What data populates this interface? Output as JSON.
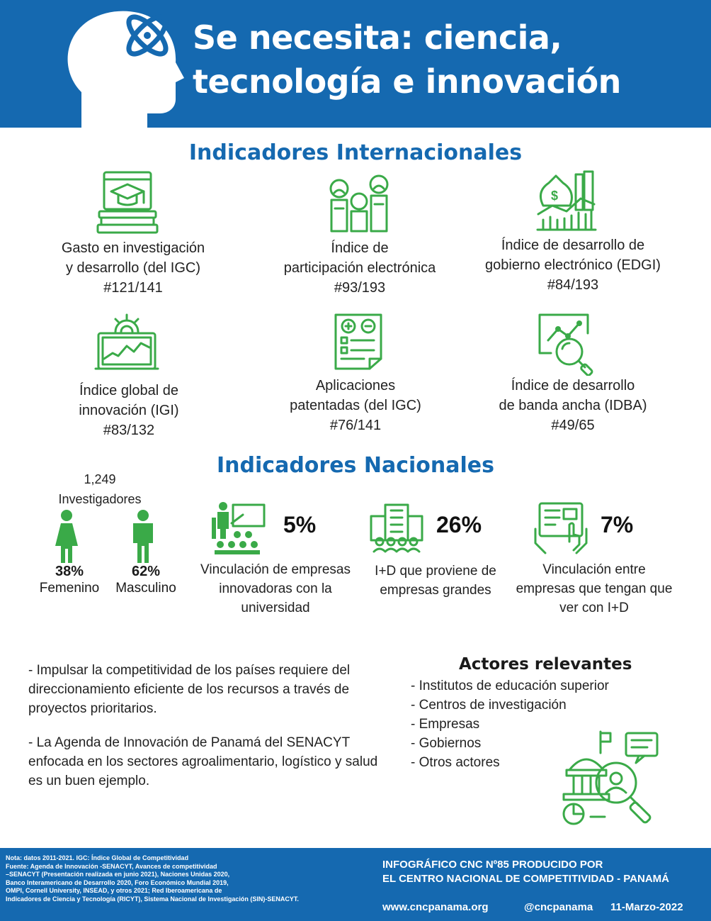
{
  "header": {
    "title_line1": "Se necesita: ciencia,",
    "title_line2": "tecnología  e innovación"
  },
  "international": {
    "title": "Indicadores Internacionales",
    "items": [
      {
        "line1": "Gasto en investigación",
        "line2": "y desarrollo (del IGC)",
        "rank": "#121/141",
        "icon": "graduation-books-icon"
      },
      {
        "line1": "Índice de",
        "line2": "participación electrónica",
        "rank": "#93/193",
        "icon": "people-podium-icon"
      },
      {
        "line1": "Índice de desarrollo de",
        "line2": "gobierno electrónico (EDGI)",
        "rank": "#84/193",
        "icon": "money-growth-icon"
      },
      {
        "line1": "Índice global de",
        "line2": "innovación (IGI)",
        "rank": "#83/132",
        "icon": "laptop-chart-icon"
      },
      {
        "line1": "Aplicaciones",
        "line2": "patentadas (del IGC)",
        "rank": "#76/141",
        "icon": "document-calculator-icon"
      },
      {
        "line1": "Índice de desarrollo",
        "line2": "de banda ancha (IDBA)",
        "rank": "#49/65",
        "icon": "magnifier-analytics-icon"
      }
    ]
  },
  "national": {
    "title": "Indicadores Nacionales",
    "researchers_count": "1,249",
    "researchers_label": "Investigadores",
    "female_pct": "38%",
    "female_label": "Femenino",
    "male_pct": "62%",
    "male_label": "Masculino",
    "stats": [
      {
        "value": "5%",
        "line1": "Vinculación de empresas",
        "line2": "innovadoras con la",
        "line3": "universidad",
        "icon": "teacher-classroom-icon"
      },
      {
        "value": "26%",
        "line1": "I+D que proviene de",
        "line2": "empresas grandes",
        "line3": "",
        "icon": "building-people-icon"
      },
      {
        "value": "7%",
        "line1": "Vinculación entre",
        "line2": "empresas que tengan que",
        "line3": "ver con I+D",
        "icon": "hands-tablet-icon"
      }
    ]
  },
  "text": {
    "para1_line1": "- Impulsar la competitividad de los países requiere del",
    "para1_line2": "direccionamiento eficiente de los recursos a través de",
    "para1_line3": "proyectos prioritarios.",
    "para2_line1": "- La Agenda de Innovación de Panamá del SENACYT",
    "para2_line2": "enfocada en los sectores agroalimentario, logístico y salud",
    "para2_line3": "es un buen ejemplo."
  },
  "actors": {
    "title": "Actores relevantes",
    "items": [
      "- Institutos de educación superior",
      "- Centros de investigación",
      "- Empresas",
      "- Gobiernos",
      "- Otros actores"
    ]
  },
  "footer": {
    "note_lines": [
      "Nota: datos 2011-2021. IGC: Índice Global de Competitividad",
      "Fuente: Agenda de Innovación -SENACYT, Avances de competitividad",
      "–SENACYT (Presentación realizada en junio 2021), Naciones Unidas 2020,",
      "Banco Interamericano de Desarrollo 2020, Foro Económico Mundial 2019,",
      "OMPI, Cornell University, INSEAD, y otros 2021; Red Iberoamericana de",
      "Indicadores de Ciencia y Tecnología (RICYT), Sistema Nacional de Investigación (SIN)-SENACYT."
    ],
    "credit_line1": "INFOGRÁFICO CNC Nº85 PRODUCIDO POR",
    "credit_line2": "EL CENTRO NACIONAL DE COMPETITIVIDAD - PANAMÁ",
    "website": "www.cncpanama.org",
    "handle": "@cncpanama",
    "date": "11-Marzo-2022"
  },
  "colors": {
    "brand_blue": "#1569b0",
    "icon_green": "#3aaa48"
  }
}
